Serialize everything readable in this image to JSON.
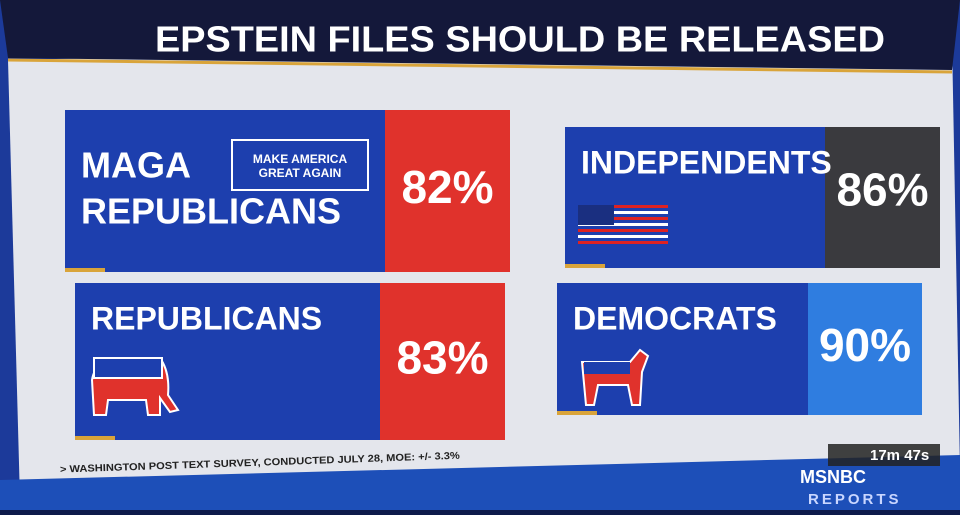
{
  "header": {
    "title": "EPSTEIN FILES SHOULD BE RELEASED"
  },
  "panels": [
    {
      "label": [
        "MAGA",
        "REPUBLICANS"
      ],
      "value": "82%",
      "badge": [
        "MAKE AMERICA",
        "GREAT AGAIN"
      ]
    },
    {
      "label": [
        "INDEPENDENTS"
      ],
      "value": "86%"
    },
    {
      "label": [
        "REPUBLICANS"
      ],
      "value": "83%"
    },
    {
      "label": [
        "DEMOCRATS"
      ],
      "value": "90%"
    }
  ],
  "source": "> WASHINGTON POST TEXT SURVEY, CONDUCTED JULY 28, MOE: +/- 3.3%",
  "timer": "17m 47s",
  "logo": "MSNBC",
  "program": "REPORTS"
}
